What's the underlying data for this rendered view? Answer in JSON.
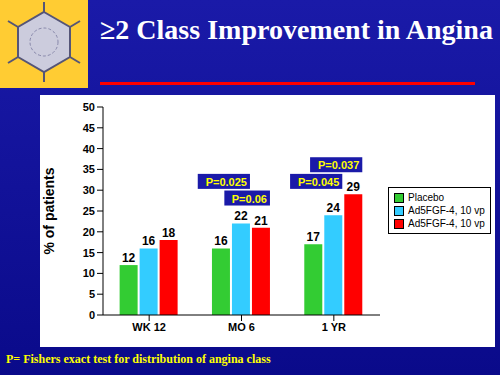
{
  "chart_data": {
    "type": "bar",
    "title": "≥2 Class Improvement in Angina",
    "y_label": "% of patients",
    "footnote": "P= Fishers exact test for distribution of angina class",
    "categories": [
      "WK 12",
      "MO 6",
      "1 YR"
    ],
    "series": [
      {
        "name": "Placebo",
        "color": "#33cc33",
        "values": [
          12,
          16,
          17
        ],
        "annotations": [
          null,
          null,
          null
        ]
      },
      {
        "name": "Ad5FGF-4, 10 vp",
        "color": "#33ccff",
        "values": [
          16,
          22,
          24
        ],
        "annotations": [
          null,
          {
            "text": "P=0.025",
            "y": 32
          },
          {
            "text": "P=0.045",
            "y": 32
          }
        ]
      },
      {
        "name": "Ad5FGF-4, 10 vp",
        "color": "#ff0000",
        "values": [
          18,
          21,
          29
        ],
        "annotations": [
          null,
          {
            "text": "P=0.06",
            "y": 28
          },
          {
            "text": "P=0.037",
            "y": 36
          }
        ]
      }
    ],
    "ylim": [
      0,
      50
    ],
    "yticks": [
      0,
      5,
      10,
      15,
      20,
      25,
      30,
      35,
      40,
      45,
      50
    ],
    "grid": false,
    "legend": "right",
    "data_labels": true
  }
}
